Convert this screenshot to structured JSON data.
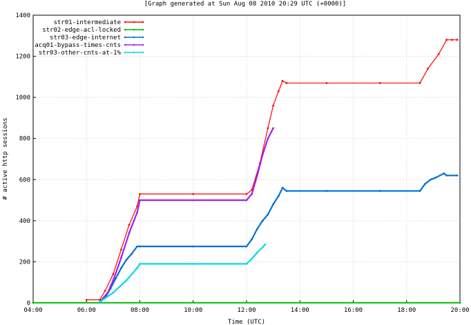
{
  "chart_data": {
    "type": "line",
    "title": "[Graph generated at Sun Aug 08 2010 20:29 UTC (+0000)]",
    "xlabel": "Time (UTC)",
    "ylabel": "# active http sessions",
    "xlim": [
      4.0,
      20.0
    ],
    "ylim": [
      0,
      1400
    ],
    "x_ticks": [
      {
        "value": 4,
        "label": "04:00"
      },
      {
        "value": 6,
        "label": "06:00"
      },
      {
        "value": 8,
        "label": "08:00"
      },
      {
        "value": 10,
        "label": "10:00"
      },
      {
        "value": 12,
        "label": "12:00"
      },
      {
        "value": 14,
        "label": "14:00"
      },
      {
        "value": 16,
        "label": "16:00"
      },
      {
        "value": 18,
        "label": "18:00"
      },
      {
        "value": 20,
        "label": "20:00"
      }
    ],
    "y_ticks": [
      {
        "value": 0,
        "label": "0"
      },
      {
        "value": 200,
        "label": "200"
      },
      {
        "value": 400,
        "label": "400"
      },
      {
        "value": 600,
        "label": "600"
      },
      {
        "value": 800,
        "label": "800"
      },
      {
        "value": 1000,
        "label": "1000"
      },
      {
        "value": 1200,
        "label": "1200"
      },
      {
        "value": 1400,
        "label": "1400"
      }
    ],
    "grid": true,
    "legend_position": "top-left",
    "series": [
      {
        "name": "str01-intermediate",
        "color": "#ff0000",
        "x": [
          6.0,
          6.5,
          6.7,
          7.0,
          7.3,
          7.6,
          7.9,
          8.0,
          10.0,
          12.0,
          12.2,
          12.5,
          12.8,
          13.0,
          13.2,
          13.35,
          13.5,
          15.0,
          17.0,
          18.5,
          18.8,
          19.2,
          19.5,
          19.7,
          19.9
        ],
        "y": [
          15,
          15,
          60,
          140,
          260,
          380,
          470,
          530,
          530,
          530,
          550,
          680,
          850,
          960,
          1030,
          1080,
          1070,
          1070,
          1070,
          1070,
          1140,
          1210,
          1280,
          1280,
          1280
        ]
      },
      {
        "name": "str02-edge-acl-locked",
        "color": "#00bb00",
        "x": [
          4.0,
          20.0
        ],
        "y": [
          1,
          1
        ]
      },
      {
        "name": "str03-edge-internet",
        "color": "#0070d8",
        "x": [
          6.5,
          6.7,
          6.9,
          7.1,
          7.3,
          7.5,
          7.7,
          7.9,
          8.0,
          10.0,
          12.0,
          12.2,
          12.4,
          12.6,
          12.8,
          13.0,
          13.2,
          13.35,
          13.5,
          15.0,
          17.0,
          18.5,
          18.7,
          18.9,
          19.1,
          19.4,
          19.5,
          19.9
        ],
        "y": [
          5,
          25,
          70,
          120,
          170,
          210,
          240,
          275,
          275,
          275,
          275,
          310,
          360,
          400,
          430,
          480,
          520,
          560,
          545,
          545,
          545,
          545,
          580,
          600,
          610,
          630,
          620,
          620
        ]
      },
      {
        "name": "acq01-bypass-times-cnts",
        "color": "#a020f0",
        "x": [
          6.5,
          6.8,
          7.0,
          7.3,
          7.6,
          7.9,
          8.0,
          10.0,
          12.0,
          12.2,
          12.4,
          12.6,
          12.8,
          13.0
        ],
        "y": [
          5,
          50,
          110,
          220,
          340,
          440,
          500,
          500,
          500,
          530,
          620,
          720,
          800,
          850
        ]
      },
      {
        "name": "str03-other-cnts-at-1%",
        "color": "#00d8e8",
        "x": [
          6.5,
          7.0,
          7.5,
          7.9,
          8.0,
          10.0,
          12.0,
          12.2,
          12.4,
          12.6,
          12.7
        ],
        "y": [
          5,
          50,
          110,
          170,
          190,
          190,
          190,
          215,
          245,
          270,
          285
        ]
      }
    ]
  }
}
